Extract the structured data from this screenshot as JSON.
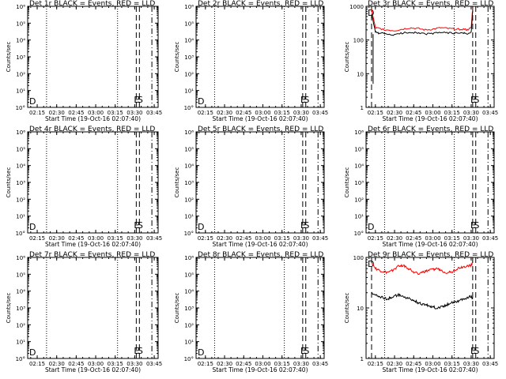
{
  "chart_data": [
    {
      "type": "line",
      "title": "Det 1r BLACK = Events, RED = LLD",
      "xlabel": "Start Time (19-Oct-16 02:07:40)",
      "ylabel": "Counts/sec",
      "y_ticks": [
        "10°",
        "10¹",
        "10²",
        "10³",
        "10⁴",
        "10⁵",
        "10⁶"
      ],
      "x_ticks": [
        "02:15",
        "02:30",
        "02:45",
        "03:00",
        "03:15",
        "03:30",
        "03:45"
      ],
      "y_scale": "log",
      "ylim": [
        1,
        1000000
      ],
      "markers": [
        {
          "label": "E",
          "x": "03:31"
        },
        {
          "label": "S",
          "x": "03:33"
        },
        {
          "label": "D",
          "x": "02:09"
        }
      ],
      "series": []
    },
    {
      "type": "line",
      "title": "Det 2r BLACK = Events, RED = LLD",
      "xlabel": "Start Time (19-Oct-16 02:07:40)",
      "ylabel": "Counts/sec",
      "y_ticks": [
        "10°",
        "10¹",
        "10²",
        "10³",
        "10⁴",
        "10⁵",
        "10⁶"
      ],
      "x_ticks": [
        "02:15",
        "02:30",
        "02:45",
        "03:00",
        "03:15",
        "03:30",
        "03:45"
      ],
      "y_scale": "log",
      "ylim": [
        1,
        1000000
      ],
      "markers": [
        {
          "label": "E",
          "x": "03:31"
        },
        {
          "label": "S",
          "x": "03:33"
        },
        {
          "label": "D",
          "x": "02:09"
        }
      ],
      "series": []
    },
    {
      "type": "line",
      "title": "Det 3r BLACK = Events, RED = LLD",
      "xlabel": "Start Time (19-Oct-16 02:07:40)",
      "ylabel": "Counts/sec",
      "y_ticks": [
        "1",
        "10",
        "100",
        "1000"
      ],
      "x_ticks": [
        "02:15",
        "02:30",
        "02:45",
        "03:00",
        "03:15",
        "03:30",
        "03:45"
      ],
      "y_scale": "log",
      "ylim": [
        1,
        1000
      ],
      "markers": [
        {
          "label": "E",
          "x": "03:31"
        },
        {
          "label": "S",
          "x": "03:33"
        },
        {
          "label": "D",
          "x": "02:09"
        }
      ],
      "series": [
        {
          "color": "#ff0000",
          "x": [
            2.2,
            2.25,
            2.3,
            2.4,
            2.5,
            2.6,
            2.7,
            2.8,
            2.9,
            3.0,
            3.1,
            3.2,
            3.3,
            3.4,
            3.45,
            3.5,
            3.52
          ],
          "y": [
            800,
            230,
            220,
            200,
            190,
            210,
            230,
            220,
            200,
            210,
            230,
            220,
            210,
            210,
            200,
            230,
            900
          ]
        },
        {
          "color": "#000000",
          "x": [
            2.2,
            2.25,
            2.3,
            2.4,
            2.5,
            2.6,
            2.7,
            2.8,
            2.9,
            3.0,
            3.1,
            3.2,
            3.3,
            3.4,
            3.45,
            3.5,
            3.52
          ],
          "y": [
            600,
            170,
            160,
            150,
            140,
            160,
            170,
            165,
            150,
            155,
            170,
            165,
            160,
            160,
            150,
            170,
            700
          ]
        }
      ]
    },
    {
      "type": "line",
      "title": "Det 4r BLACK = Events, RED = LLD",
      "xlabel": "Start Time (19-Oct-16 02:07:40)",
      "ylabel": "Counts/sec",
      "y_ticks": [
        "10°",
        "10¹",
        "10²",
        "10³",
        "10⁴",
        "10⁵",
        "10⁶"
      ],
      "x_ticks": [
        "02:15",
        "02:30",
        "02:45",
        "03:00",
        "03:15",
        "03:30",
        "03:45"
      ],
      "y_scale": "log",
      "ylim": [
        1,
        1000000
      ],
      "markers": [
        {
          "label": "E",
          "x": "03:31"
        },
        {
          "label": "S",
          "x": "03:33"
        },
        {
          "label": "D",
          "x": "02:09"
        }
      ],
      "series": []
    },
    {
      "type": "line",
      "title": "Det 5r BLACK = Events, RED = LLD",
      "xlabel": "Start Time (19-Oct-16 02:07:40)",
      "ylabel": "Counts/sec",
      "y_ticks": [
        "10°",
        "10¹",
        "10²",
        "10³",
        "10⁴",
        "10⁵",
        "10⁶"
      ],
      "x_ticks": [
        "02:15",
        "02:30",
        "02:45",
        "03:00",
        "03:15",
        "03:30",
        "03:45"
      ],
      "y_scale": "log",
      "ylim": [
        1,
        1000000
      ],
      "markers": [
        {
          "label": "E",
          "x": "03:31"
        },
        {
          "label": "S",
          "x": "03:33"
        },
        {
          "label": "D",
          "x": "02:09"
        }
      ],
      "series": []
    },
    {
      "type": "line",
      "title": "Det 6r BLACK = Events, RED = LLD",
      "xlabel": "Start Time (19-Oct-16 02:07:40)",
      "ylabel": "Counts/sec",
      "y_ticks": [
        "10°",
        "10¹",
        "10²",
        "10³",
        "10⁴",
        "10⁵",
        "10⁶"
      ],
      "x_ticks": [
        "02:15",
        "02:30",
        "02:45",
        "03:00",
        "03:15",
        "03:30",
        "03:45"
      ],
      "y_scale": "log",
      "ylim": [
        1,
        1000000
      ],
      "markers": [
        {
          "label": "E",
          "x": "03:31"
        },
        {
          "label": "S",
          "x": "03:33"
        },
        {
          "label": "D",
          "x": "02:09"
        }
      ],
      "series": []
    },
    {
      "type": "line",
      "title": "Det 7r BLACK = Events, RED = LLD",
      "xlabel": "Start Time (19-Oct-16 02:07:40)",
      "ylabel": "Counts/sec",
      "y_ticks": [
        "10°",
        "10¹",
        "10²",
        "10³",
        "10⁴",
        "10⁵",
        "10⁶"
      ],
      "x_ticks": [
        "02:15",
        "02:30",
        "02:45",
        "03:00",
        "03:15",
        "03:30",
        "03:45"
      ],
      "y_scale": "log",
      "ylim": [
        1,
        1000000
      ],
      "markers": [
        {
          "label": "E",
          "x": "03:31"
        },
        {
          "label": "S",
          "x": "03:33"
        },
        {
          "label": "D",
          "x": "02:09"
        }
      ],
      "series": []
    },
    {
      "type": "line",
      "title": "Det 8r BLACK = Events, RED = LLD",
      "xlabel": "Start Time (19-Oct-16 02:07:40)",
      "ylabel": "Counts/sec",
      "y_ticks": [
        "10°",
        "10¹",
        "10²",
        "10³",
        "10⁴",
        "10⁵",
        "10⁶"
      ],
      "x_ticks": [
        "02:15",
        "02:30",
        "02:45",
        "03:00",
        "03:15",
        "03:30",
        "03:45"
      ],
      "y_scale": "log",
      "ylim": [
        1,
        1000000
      ],
      "markers": [
        {
          "label": "E",
          "x": "03:31"
        },
        {
          "label": "S",
          "x": "03:33"
        },
        {
          "label": "D",
          "x": "02:09"
        }
      ],
      "series": []
    },
    {
      "type": "line",
      "title": "Det 9r BLACK = Events, RED = LLD",
      "xlabel": "Start Time (19-Oct-16 02:07:40)",
      "ylabel": "Counts/sec",
      "y_ticks": [
        "1",
        "10",
        "100"
      ],
      "x_ticks": [
        "02:15",
        "02:30",
        "02:45",
        "03:00",
        "03:15",
        "03:30",
        "03:45"
      ],
      "y_scale": "log",
      "ylim": [
        1,
        100
      ],
      "markers": [
        {
          "label": "E",
          "x": "03:31"
        },
        {
          "label": "S",
          "x": "03:33"
        },
        {
          "label": "D",
          "x": "02:09"
        }
      ],
      "series": [
        {
          "color": "#ff0000",
          "x": [
            2.2,
            2.25,
            2.3,
            2.35,
            2.4,
            2.45,
            2.5,
            2.55,
            2.6,
            2.65,
            2.7,
            2.75,
            2.8,
            2.85,
            2.9,
            2.95,
            3.0,
            3.05,
            3.1,
            3.15,
            3.2,
            3.25,
            3.3,
            3.35,
            3.4,
            3.45,
            3.5,
            3.52
          ],
          "y": [
            80,
            60,
            55,
            52,
            50,
            52,
            60,
            68,
            70,
            65,
            58,
            52,
            48,
            50,
            52,
            55,
            58,
            60,
            56,
            52,
            50,
            52,
            58,
            62,
            65,
            68,
            70,
            80
          ]
        },
        {
          "color": "#000000",
          "x": [
            2.2,
            2.25,
            2.3,
            2.35,
            2.4,
            2.45,
            2.5,
            2.55,
            2.6,
            2.65,
            2.7,
            2.75,
            2.8,
            2.85,
            2.9,
            2.95,
            3.0,
            3.05,
            3.1,
            3.15,
            3.2,
            3.25,
            3.3,
            3.35,
            3.4,
            3.45,
            3.5,
            3.52
          ],
          "y": [
            20,
            18,
            17,
            16,
            15,
            16,
            17,
            18,
            17,
            16,
            15,
            14,
            13,
            12,
            11.5,
            11,
            10.5,
            10,
            10.5,
            11,
            12,
            13,
            13.5,
            14,
            15,
            16,
            17,
            15
          ]
        }
      ]
    }
  ]
}
